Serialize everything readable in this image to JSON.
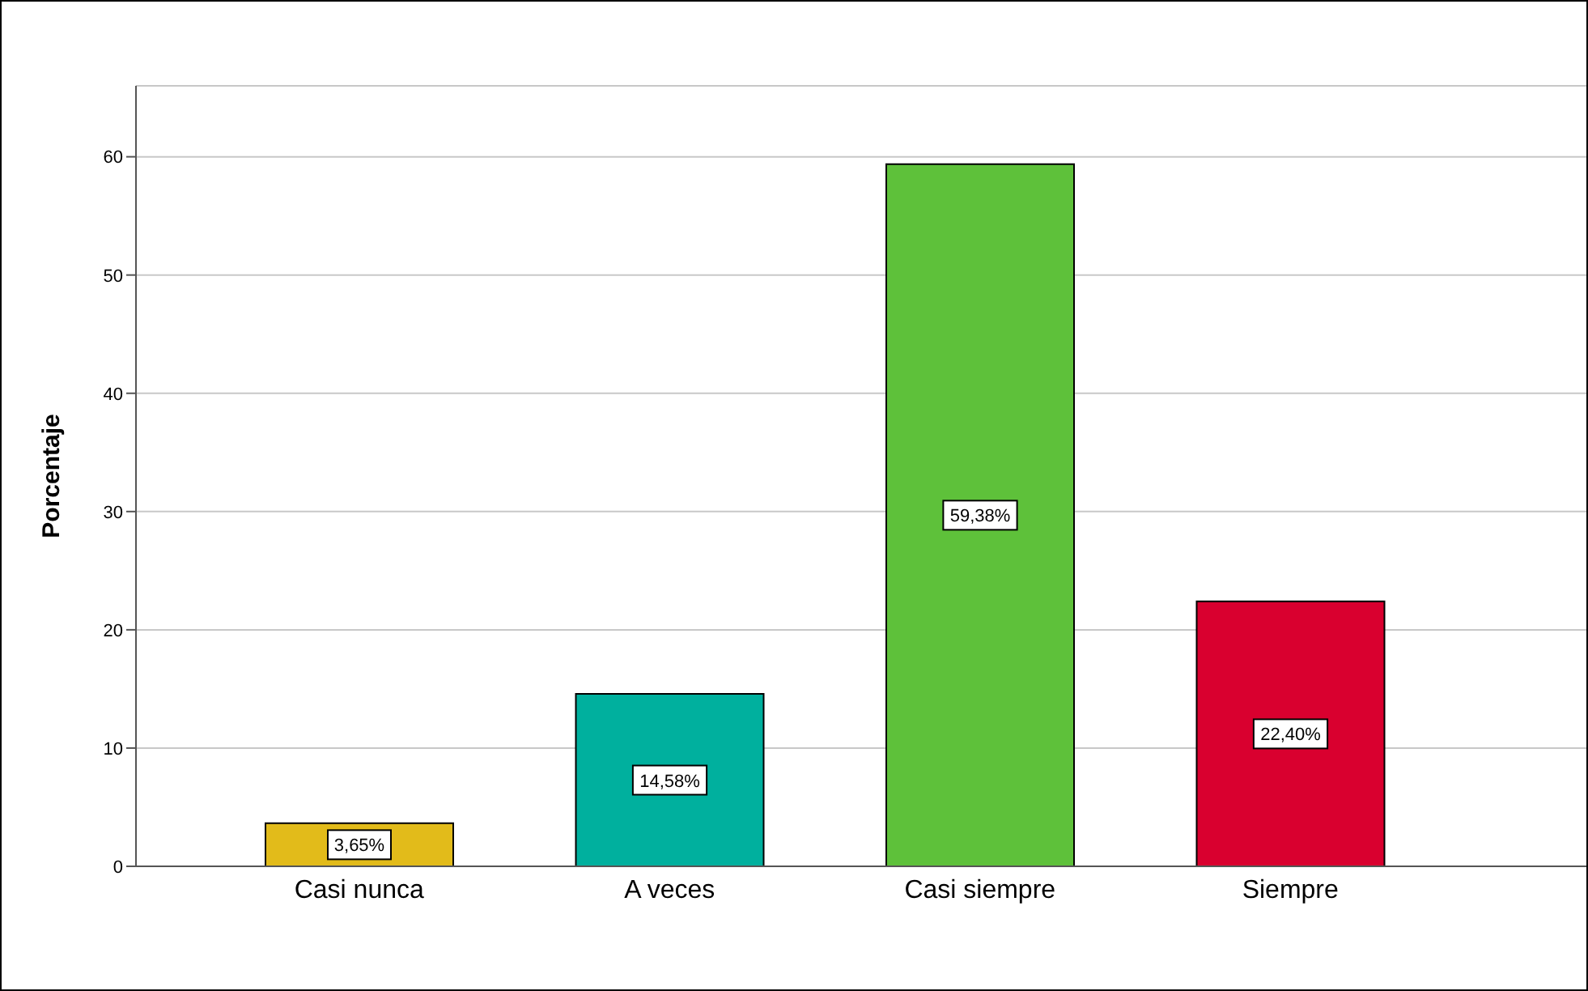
{
  "chart_data": {
    "type": "bar",
    "ylabel": "Porcentaje",
    "categories": [
      "Casi nunca",
      "A veces",
      "Casi siempre",
      "Siempre"
    ],
    "values": [
      3.65,
      14.58,
      59.38,
      22.4
    ],
    "colors": [
      "#e2bb1a",
      "#00b09e",
      "#5ec13a",
      "#d9002f"
    ],
    "value_labels": [
      "3,65%",
      "14,58%",
      "59,38%",
      "22,40%"
    ],
    "ylim": [
      0,
      66
    ],
    "yticks": [
      0,
      10,
      20,
      30,
      40,
      50,
      60
    ],
    "grid": "y",
    "legend": false
  }
}
